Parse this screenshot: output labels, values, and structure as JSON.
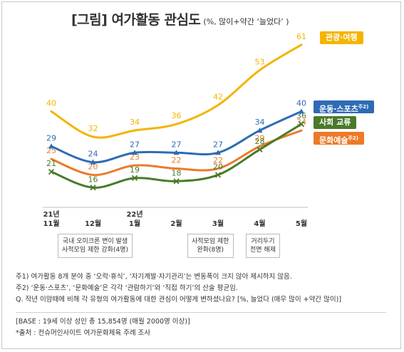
{
  "title": {
    "main": "[그림] 여가활동 관심도",
    "sub": "(%, 많이+약간 ‘늘었다’ )"
  },
  "chart_data": {
    "type": "line",
    "categories": [
      [
        "21년",
        "11월"
      ],
      [
        "12월"
      ],
      [
        "22년",
        "1월"
      ],
      [
        "2월"
      ],
      [
        "3월"
      ],
      [
        "4월"
      ],
      [
        "5월"
      ]
    ],
    "ylim": [
      10,
      65
    ],
    "series": [
      {
        "name": "관광·여행",
        "color": "#f4b400",
        "marker": "none",
        "values": [
          40,
          32,
          34,
          36,
          42,
          53,
          61
        ]
      },
      {
        "name": "운동·스포츠",
        "note": "주2)",
        "color": "#2e6bb5",
        "marker": "triangle",
        "values": [
          29,
          24,
          27,
          27,
          27,
          34,
          40
        ]
      },
      {
        "name": "사회 교류",
        "color": "#4a7a2a",
        "marker": "x",
        "values": [
          21,
          16,
          19,
          18,
          20,
          28,
          36
        ]
      },
      {
        "name": "문화예술",
        "note": "주2)",
        "color": "#ec7a2a",
        "marker": "none",
        "values": [
          25,
          20,
          23,
          22,
          22,
          29,
          34
        ]
      }
    ]
  },
  "events": [
    {
      "lines": [
        "국내 오미크론 변이 발생",
        "사적모임 제한 강화(4명)"
      ]
    },
    {
      "lines": [
        "사적모임 제한",
        "완화(8명)"
      ]
    },
    {
      "lines": [
        "거리두기",
        "전면 해제"
      ]
    }
  ],
  "notes": [
    "주1) 여가활동 8개 분야 중 ‘오락·휴식’, ‘자기계발·자기관리’는 변동폭이 크지 않아 제시하지 않음.",
    "주2) ‘운동·스포츠’, ‘문화예술’은 각각 ‘관람하기’와 ‘직접 하기’의 산술 평균임.",
    "Q. 작년 이맘때에 비해 각 유형의 여가활동에 대한 관심이 어떻게 변하셨나요? [%, 늘었다 (매우 많이 +약간 많이)]"
  ],
  "base": [
    "[BASE : 19세 이상 성인 총 15,854명 (매월 2000명 이상)]",
    "*출처 : 컨슈머인사이트 여가문화체육 주례 조사"
  ]
}
